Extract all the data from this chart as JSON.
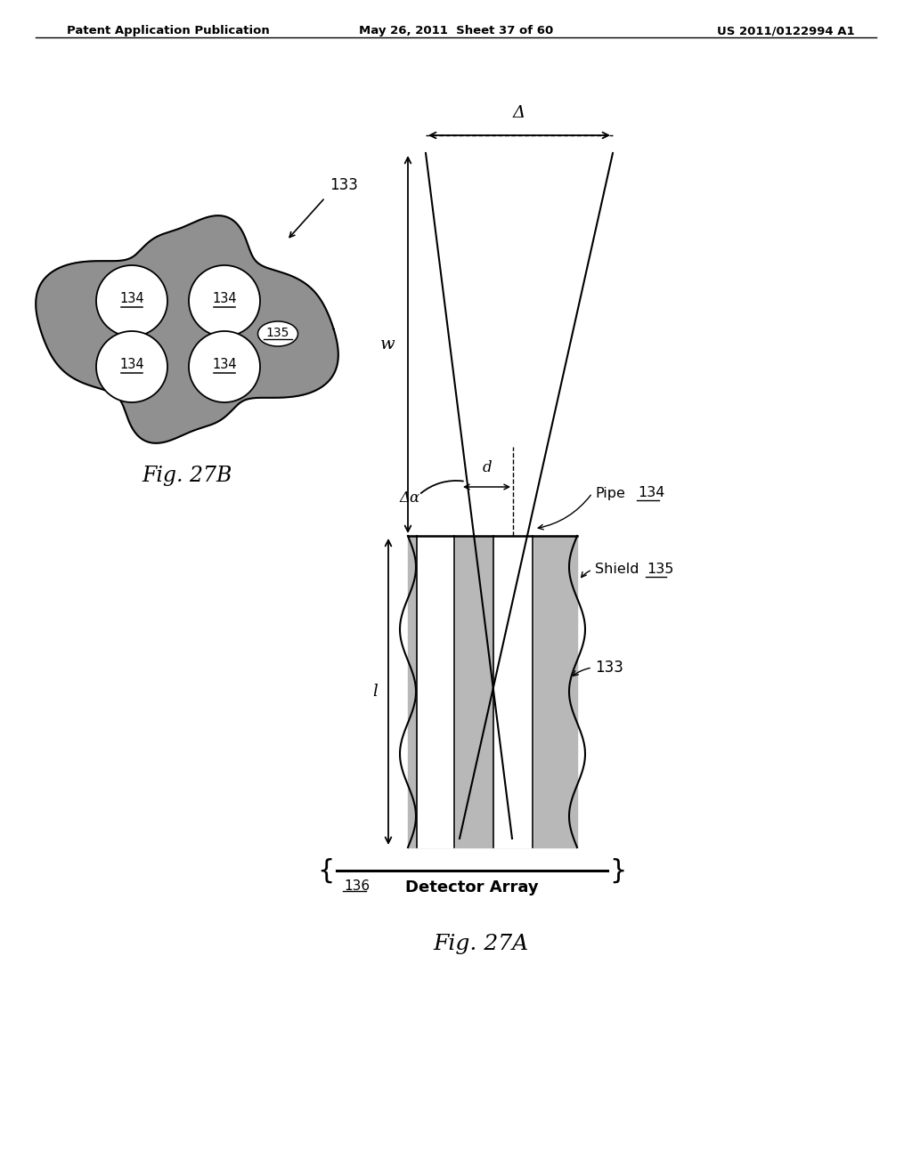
{
  "header_left": "Patent Application Publication",
  "header_mid": "May 26, 2011  Sheet 37 of 60",
  "header_right": "US 2011/0122994 A1",
  "fig27A_label": "Fig. 27A",
  "fig27B_label": "Fig. 27B",
  "label_133": "133",
  "label_134": "134",
  "label_135": "135",
  "label_136": "136",
  "label_delta": "Δ",
  "label_w": "w",
  "label_l": "l",
  "label_dalpha": "Δα",
  "label_d": "d",
  "label_pipe": "Pipe",
  "label_shield": "Shield",
  "label_detector": "Detector Array",
  "bg_color": "#ffffff",
  "line_color": "#000000",
  "blob_gray": "#909090",
  "shield_gray": "#b8b8b8"
}
